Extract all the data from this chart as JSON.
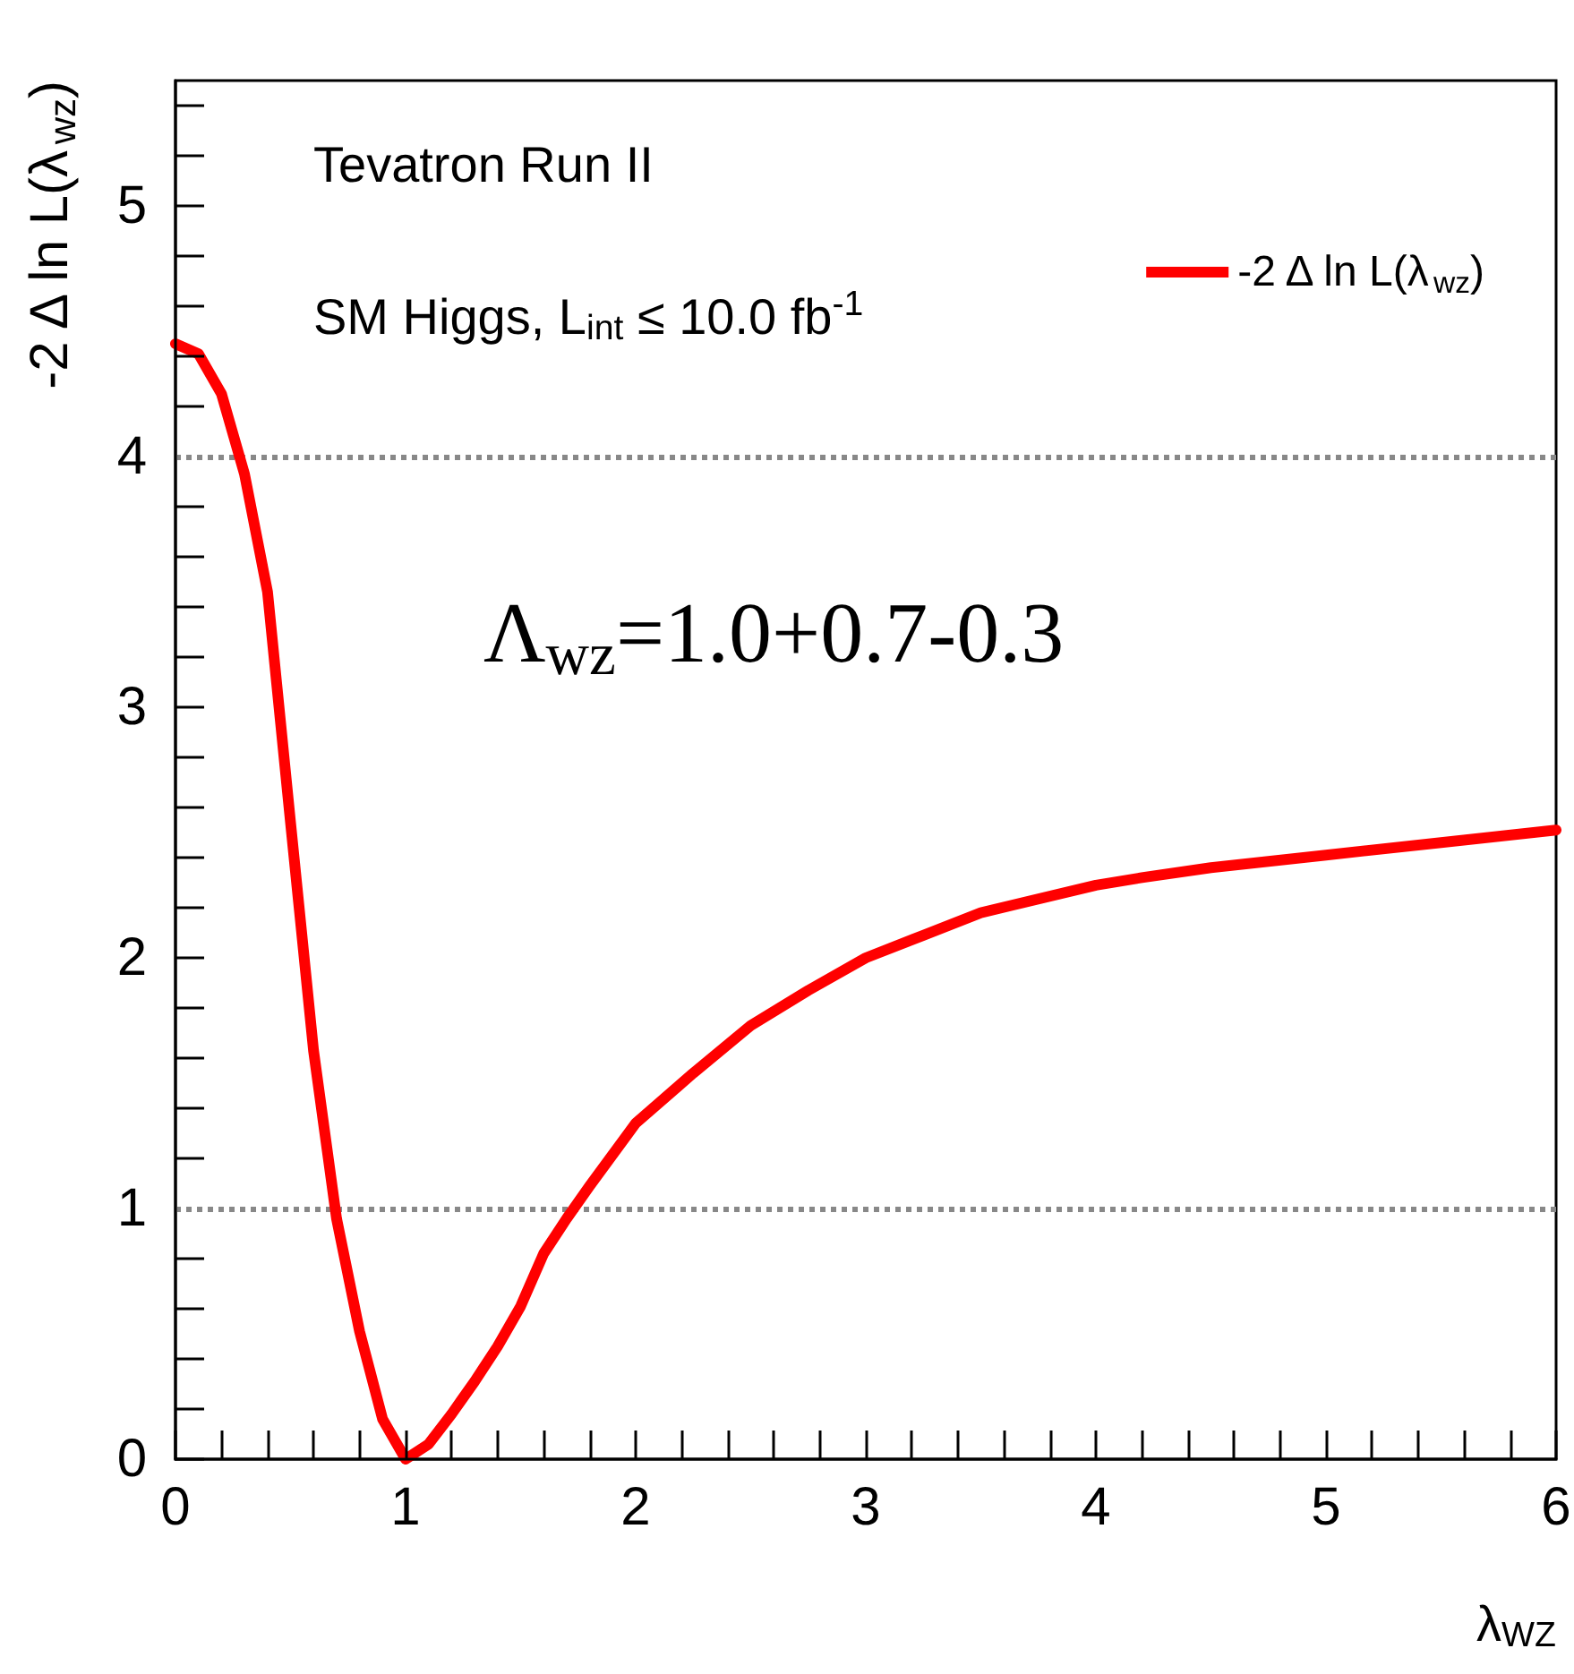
{
  "chart_data": {
    "type": "line",
    "xlabel": "λ$_{WZ}$",
    "ylabel": "-2 Δ ln L(λ$_{wz}$)",
    "annotations": [
      "Tevatron Run II",
      "SM Higgs, L$_{int}$ ≤ 10.0 fb$^{-1}$",
      "Λ$_{wz}$=1.0+0.7-0.3"
    ],
    "x": [
      0,
      0.1,
      0.2,
      0.3,
      0.4,
      0.5,
      0.6,
      0.7,
      0.8,
      0.9,
      1.0,
      1.1,
      1.2,
      1.3,
      1.4,
      1.5,
      1.6,
      1.7,
      1.8,
      2.0,
      2.25,
      2.5,
      2.75,
      3.0,
      3.25,
      3.5,
      4.0,
      4.2,
      4.5,
      5.0,
      5.5,
      6.0
    ],
    "series": [
      {
        "name": "-2 Δ ln L(λ$_{wz}$)",
        "color": "#ff0000",
        "values": [
          4.45,
          4.41,
          4.25,
          3.93,
          3.46,
          2.54,
          1.63,
          0.96,
          0.51,
          0.16,
          0,
          0.06,
          0.18,
          0.31,
          0.45,
          0.61,
          0.82,
          0.96,
          1.09,
          1.34,
          1.54,
          1.73,
          1.87,
          2.0,
          2.09,
          2.18,
          2.29,
          2.32,
          2.36,
          2.41,
          2.46,
          2.51
        ]
      }
    ],
    "xlim": [
      0,
      6
    ],
    "xticks": [
      0,
      {
        "value": 0.2,
        "label": null
      },
      {
        "value": 0.4,
        "label": null
      },
      {
        "value": 0.6,
        "label": null
      },
      {
        "value": 0.8,
        "label": null
      },
      1,
      {
        "value": 1.2,
        "label": null
      },
      {
        "value": 1.4,
        "label": null
      },
      {
        "value": 1.6,
        "label": null
      },
      {
        "value": 1.8,
        "label": null
      },
      2,
      {
        "value": 2.2,
        "label": null
      },
      {
        "value": 2.4,
        "label": null
      },
      {
        "value": 2.6,
        "label": null
      },
      {
        "value": 2.8,
        "label": null
      },
      3,
      {
        "value": 3.2,
        "label": null
      },
      {
        "value": 3.4,
        "label": null
      },
      {
        "value": 3.6,
        "label": null
      },
      {
        "value": 3.8,
        "label": null
      },
      4,
      {
        "value": 4.2,
        "label": null
      },
      {
        "value": 4.4,
        "label": null
      },
      {
        "value": 4.6,
        "label": null
      },
      {
        "value": 4.8,
        "label": null
      },
      5,
      {
        "value": 5.2,
        "label": null
      },
      {
        "value": 5.4,
        "label": null
      },
      {
        "value": 5.6,
        "label": null
      },
      {
        "value": 5.8,
        "label": null
      },
      6
    ],
    "ylim": [
      0,
      5.5
    ],
    "yticks": [
      0,
      {
        "value": 0.2,
        "label": null
      },
      {
        "value": 0.4,
        "label": null
      },
      {
        "value": 0.6,
        "label": null
      },
      {
        "value": 0.8,
        "label": null
      },
      1,
      {
        "value": 1.2,
        "label": null
      },
      {
        "value": 1.4,
        "label": null
      },
      {
        "value": 1.6,
        "label": null
      },
      {
        "value": 1.8,
        "label": null
      },
      2,
      {
        "value": 2.2,
        "label": null
      },
      {
        "value": 2.4,
        "label": null
      },
      {
        "value": 2.6,
        "label": null
      },
      {
        "value": 2.8,
        "label": null
      },
      3,
      {
        "value": 3.2,
        "label": null
      },
      {
        "value": 3.4,
        "label": null
      },
      {
        "value": 3.6,
        "label": null
      },
      {
        "value": 3.8,
        "label": null
      },
      4,
      {
        "value": 4.2,
        "label": null
      },
      {
        "value": 4.4,
        "label": null
      },
      {
        "value": 4.6,
        "label": null
      },
      {
        "value": 4.8,
        "label": null
      },
      5,
      {
        "value": 5.2,
        "label": null
      },
      {
        "value": 5.4,
        "label": null
      }
    ],
    "ref_lines": [
      {
        "axis": "y",
        "value": 1,
        "color": "#888888",
        "line_style": "dotted"
      },
      {
        "axis": "y",
        "value": 4,
        "color": "#888888",
        "line_style": "dotted"
      }
    ],
    "grid": false,
    "legend": "top right",
    "marker": "none",
    "line_style": "solid"
  }
}
